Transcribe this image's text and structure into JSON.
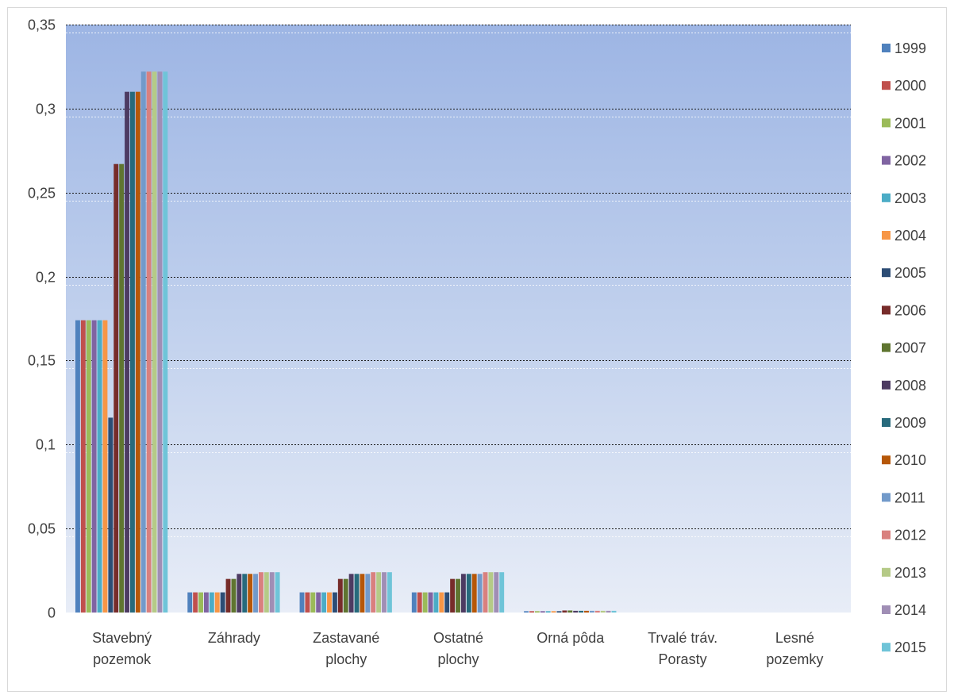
{
  "chart_data": {
    "type": "bar",
    "title": "",
    "xlabel": "",
    "ylabel": "",
    "ylim": [
      0,
      0.35
    ],
    "yticks": [
      0,
      0.05,
      0.1,
      0.15,
      0.2,
      0.25,
      0.3,
      0.35
    ],
    "ytick_labels": [
      "0",
      "0,05",
      "0,1",
      "0,15",
      "0,2",
      "0,25",
      "0,3",
      "0,35"
    ],
    "grid": true,
    "legend_position": "right",
    "categories": [
      [
        "Stavebný",
        "pozemok"
      ],
      [
        "Záhrady"
      ],
      [
        "Zastavané",
        "plochy"
      ],
      [
        "Ostatné",
        "plochy"
      ],
      [
        "Orná pôda"
      ],
      [
        "Trvalé tráv.",
        "Porasty"
      ],
      [
        "Lesné",
        "pozemky"
      ]
    ],
    "series": [
      {
        "name": "1999",
        "color": "#4f81bd",
        "values": [
          0.174,
          0.012,
          0.012,
          0.012,
          0.0008,
          0,
          0
        ]
      },
      {
        "name": "2000",
        "color": "#c0504d",
        "values": [
          0.174,
          0.012,
          0.012,
          0.012,
          0.0008,
          0,
          0
        ]
      },
      {
        "name": "2001",
        "color": "#9bbb59",
        "values": [
          0.174,
          0.012,
          0.012,
          0.012,
          0.0008,
          0,
          0
        ]
      },
      {
        "name": "2002",
        "color": "#8064a2",
        "values": [
          0.174,
          0.012,
          0.012,
          0.012,
          0.0008,
          0,
          0
        ]
      },
      {
        "name": "2003",
        "color": "#4bacc6",
        "values": [
          0.174,
          0.012,
          0.012,
          0.012,
          0.0008,
          0,
          0
        ]
      },
      {
        "name": "2004",
        "color": "#f79646",
        "values": [
          0.174,
          0.012,
          0.012,
          0.012,
          0.0008,
          0,
          0
        ]
      },
      {
        "name": "2005",
        "color": "#2c4d75",
        "values": [
          0.116,
          0.012,
          0.012,
          0.012,
          0.0008,
          0,
          0
        ]
      },
      {
        "name": "2006",
        "color": "#772c2a",
        "values": [
          0.267,
          0.02,
          0.02,
          0.02,
          0.0012,
          0,
          0
        ]
      },
      {
        "name": "2007",
        "color": "#5f7530",
        "values": [
          0.267,
          0.02,
          0.02,
          0.02,
          0.0012,
          0,
          0
        ]
      },
      {
        "name": "2008",
        "color": "#4d3b62",
        "values": [
          0.31,
          0.023,
          0.023,
          0.023,
          0.001,
          0,
          0
        ]
      },
      {
        "name": "2009",
        "color": "#276a7c",
        "values": [
          0.31,
          0.023,
          0.023,
          0.023,
          0.001,
          0,
          0
        ]
      },
      {
        "name": "2010",
        "color": "#b65708",
        "values": [
          0.31,
          0.023,
          0.023,
          0.023,
          0.001,
          0,
          0
        ]
      },
      {
        "name": "2011",
        "color": "#729aca",
        "values": [
          0.322,
          0.023,
          0.023,
          0.023,
          0.001,
          0,
          0
        ]
      },
      {
        "name": "2012",
        "color": "#d9807e",
        "values": [
          0.322,
          0.024,
          0.024,
          0.024,
          0.001,
          0,
          0
        ]
      },
      {
        "name": "2013",
        "color": "#b5ca87",
        "values": [
          0.322,
          0.024,
          0.024,
          0.024,
          0.001,
          0,
          0
        ]
      },
      {
        "name": "2014",
        "color": "#a08eb5",
        "values": [
          0.322,
          0.024,
          0.024,
          0.024,
          0.001,
          0,
          0
        ]
      },
      {
        "name": "2015",
        "color": "#6fc4d8",
        "values": [
          0.322,
          0.024,
          0.024,
          0.024,
          0.001,
          0,
          0
        ]
      }
    ]
  }
}
